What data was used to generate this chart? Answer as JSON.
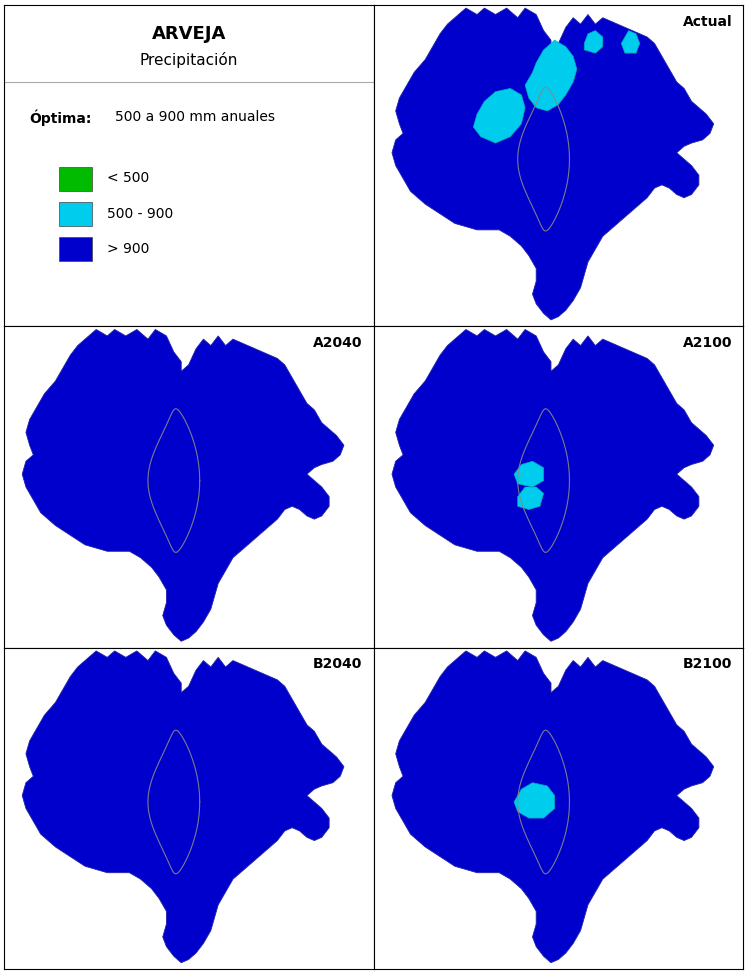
{
  "title_line1": "ARVEJA",
  "title_line2": "Precipitación",
  "optima_label": "Óptima:",
  "optima_text": "500 a 900 mm anuales",
  "legend_items": [
    {
      "label": "< 500",
      "color": "#00bb00"
    },
    {
      "label": "500 - 900",
      "color": "#00ddee"
    },
    {
      "label": "> 900",
      "color": "#0000cc"
    }
  ],
  "panel_labels": [
    "Actual",
    "A2040",
    "A2100",
    "B2040",
    "B2100"
  ],
  "color_blue": "#0000cc",
  "color_cyan": "#00ccee",
  "color_green": "#00bb00",
  "color_river": "#888888",
  "bg_color": "#ffffff",
  "grid_color": "#000000",
  "label_fontsize": 10,
  "title_fontsize": 12
}
